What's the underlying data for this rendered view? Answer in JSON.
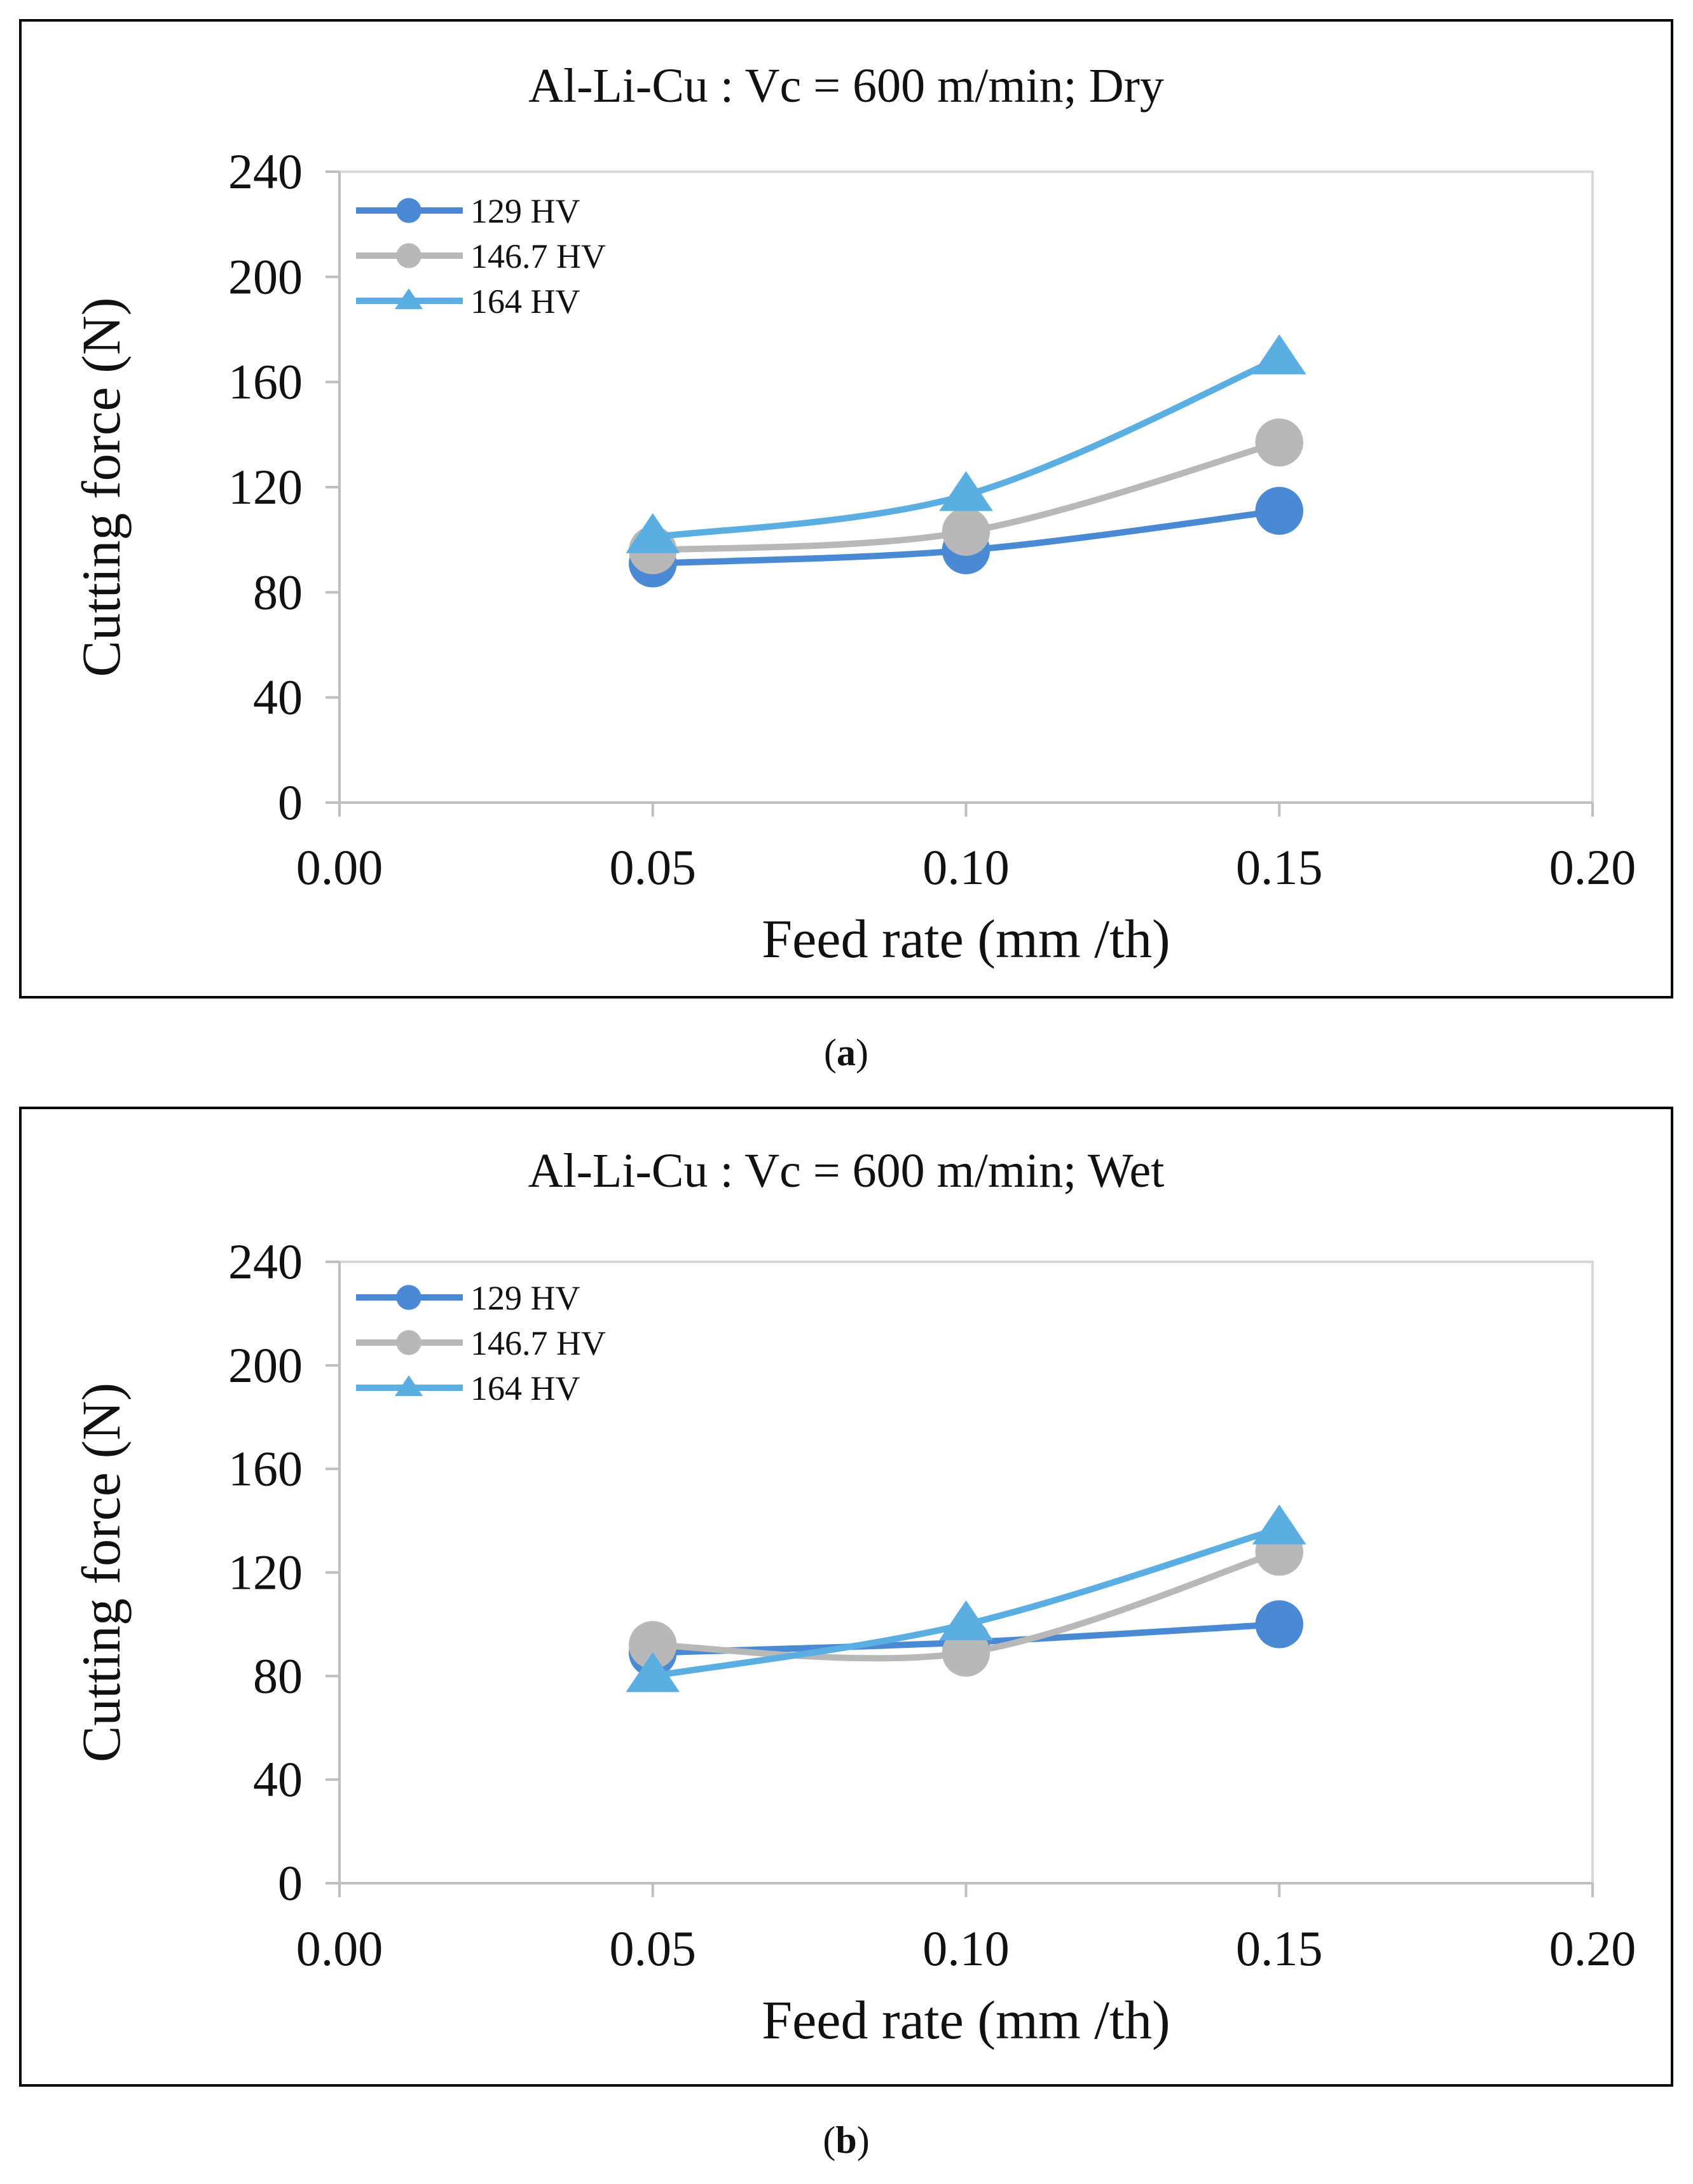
{
  "chart_data": [
    {
      "type": "line",
      "panel_label": "a",
      "title": "Al-Li-Cu : Vc = 600 m/min;  Dry",
      "xlabel": "Feed rate (mm /th)",
      "ylabel": "Cutting force (N)",
      "xlim": [
        0,
        0.2
      ],
      "ylim": [
        0,
        240
      ],
      "xticks": [
        "0.00",
        "0.05",
        "0.10",
        "0.15",
        "0.20"
      ],
      "yticks": [
        "0",
        "40",
        "80",
        "120",
        "160",
        "200",
        "240"
      ],
      "x": [
        0.05,
        0.1,
        0.15
      ],
      "series": [
        {
          "name": "129 HV",
          "marker": "circle",
          "color": "#4a89d4",
          "values": [
            91,
            96,
            111
          ]
        },
        {
          "name": "146.7 HV",
          "marker": "circle",
          "color": "#b8b8b8",
          "values": [
            96,
            103,
            137
          ]
        },
        {
          "name": "164 HV",
          "marker": "triangle",
          "color": "#5aaee2",
          "values": [
            101,
            117,
            169
          ]
        }
      ],
      "legend": "top-left"
    },
    {
      "type": "line",
      "panel_label": "b",
      "title": "Al-Li-Cu : Vc = 600 m/min;  Wet",
      "xlabel": "Feed rate (mm /th)",
      "ylabel": "Cutting force (N)",
      "xlim": [
        0,
        0.2
      ],
      "ylim": [
        0,
        240
      ],
      "xticks": [
        "0.00",
        "0.05",
        "0.10",
        "0.15",
        "0.20"
      ],
      "yticks": [
        "0",
        "40",
        "80",
        "120",
        "160",
        "200",
        "240"
      ],
      "x": [
        0.05,
        0.1,
        0.15
      ],
      "series": [
        {
          "name": "129 HV",
          "marker": "circle",
          "color": "#4a89d4",
          "values": [
            89,
            93,
            100
          ]
        },
        {
          "name": "146.7 HV",
          "marker": "circle",
          "color": "#b8b8b8",
          "values": [
            92,
            89,
            128
          ]
        },
        {
          "name": "164 HV",
          "marker": "triangle",
          "color": "#5aaee2",
          "values": [
            80,
            100,
            137
          ]
        }
      ],
      "legend": "top-left"
    }
  ]
}
